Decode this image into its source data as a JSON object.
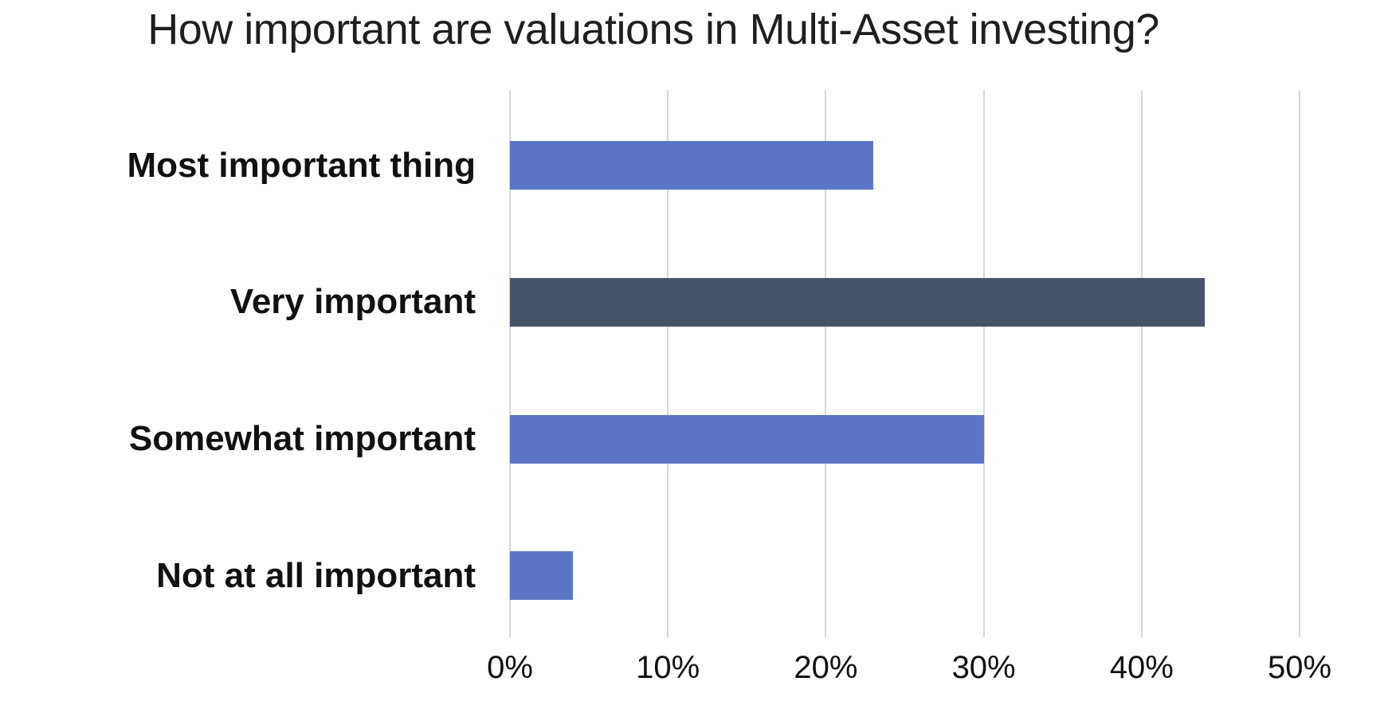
{
  "chart_data": {
    "type": "bar",
    "orientation": "horizontal",
    "title": "How important are valuations in Multi-Asset investing?",
    "categories": [
      "Most important thing",
      "Very important",
      "Somewhat important",
      "Not at all important"
    ],
    "values": [
      23,
      44,
      30,
      4
    ],
    "value_unit": "%",
    "xlabel": "",
    "ylabel": "",
    "xlim": [
      0,
      50
    ],
    "x_tick_values": [
      0,
      10,
      20,
      30,
      40,
      50
    ],
    "x_tick_labels": [
      "0%",
      "10%",
      "20%",
      "30%",
      "40%",
      "50%"
    ],
    "grid": "vertical-only",
    "legend": "none",
    "bar_colors": [
      "#5B76C4",
      "#475368",
      "#5B76C4",
      "#5B76C4"
    ],
    "colors": {
      "bar_primary": "#5B76C4",
      "bar_highlight": "#475368",
      "gridline": "#D7D7D7",
      "title_text": "#1F1F1F",
      "label_text": "#111111",
      "background": "#FFFFFF"
    }
  }
}
